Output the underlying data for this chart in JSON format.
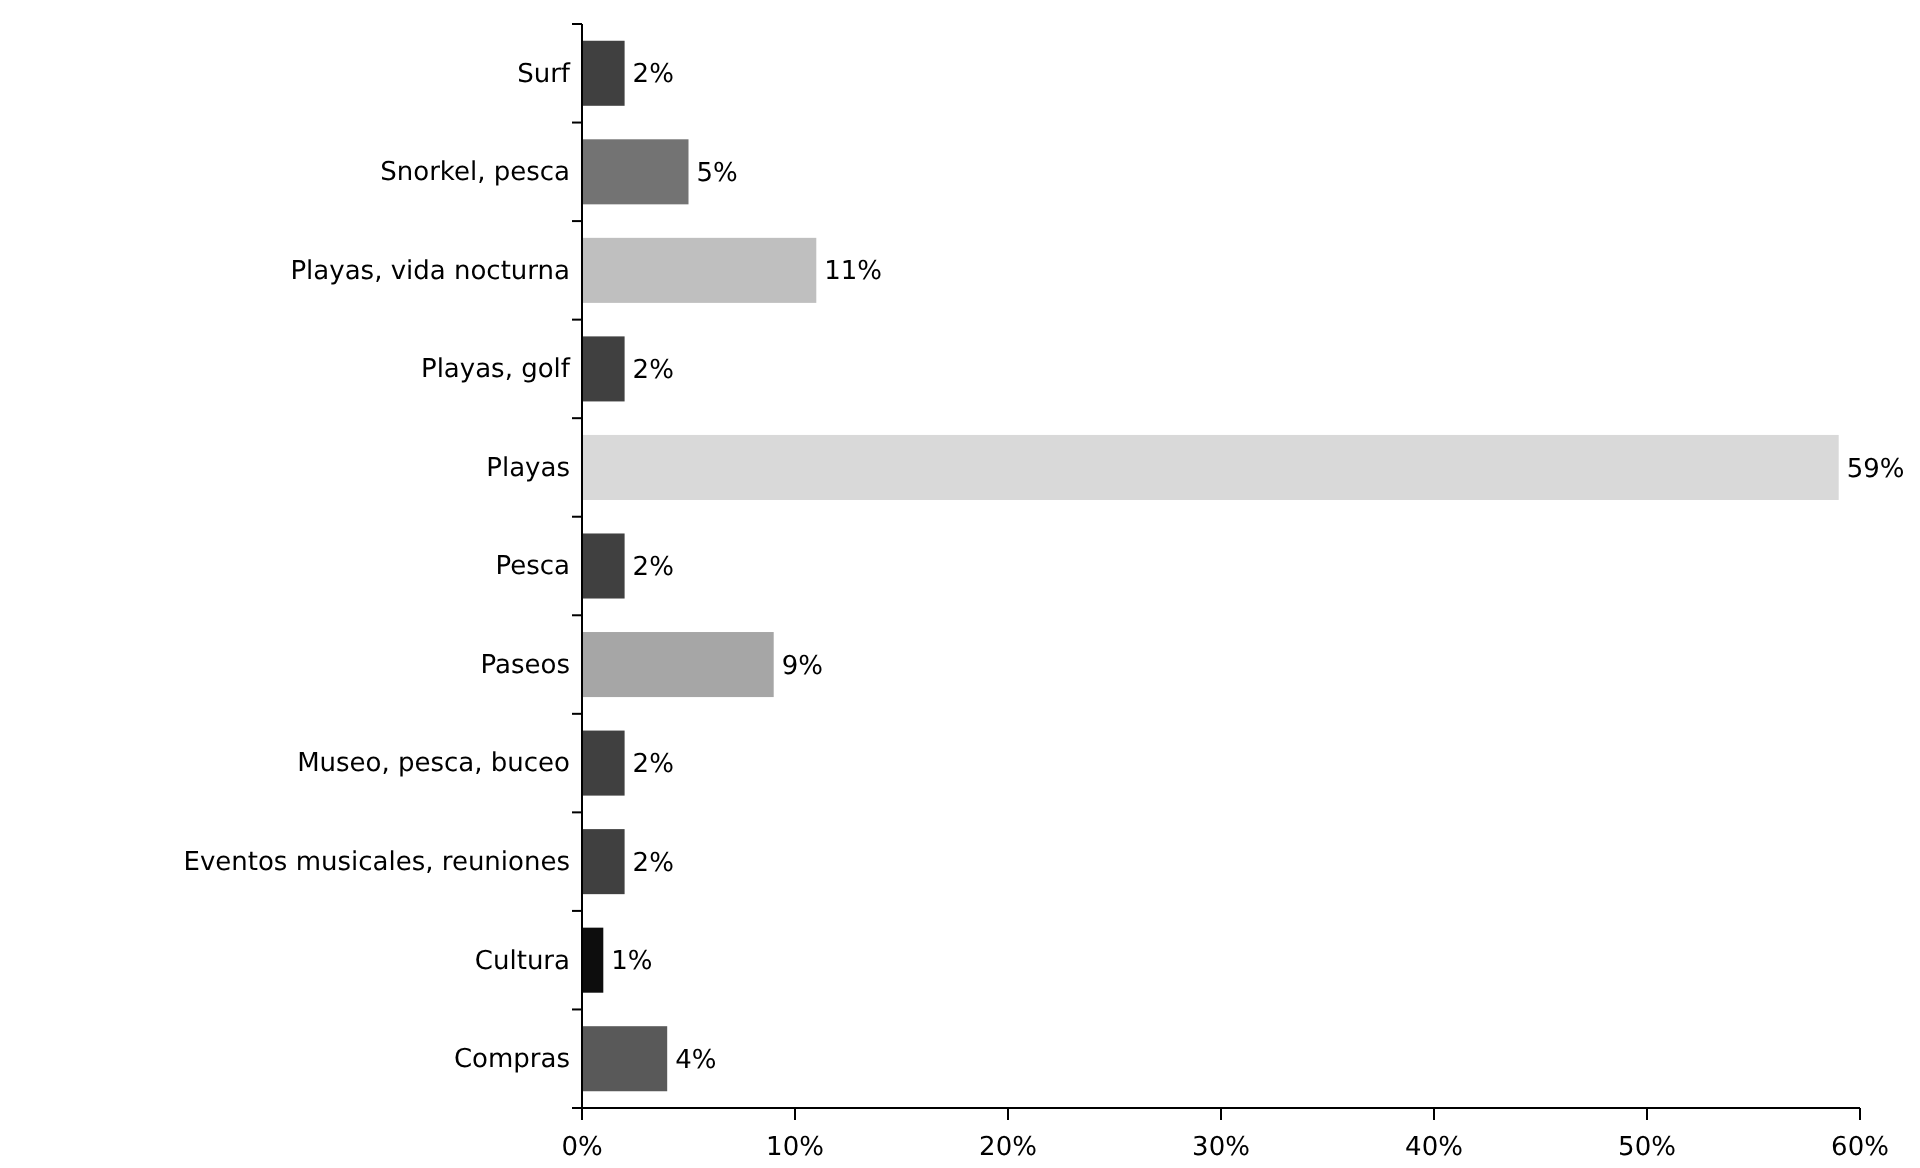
{
  "chart_data": {
    "type": "bar",
    "orientation": "horizontal",
    "categories": [
      "Surf",
      "Snorkel, pesca",
      "Playas, vida nocturna",
      "Playas, golf",
      "Playas",
      "Pesca",
      "Paseos",
      "Museo, pesca, buceo",
      "Eventos musicales, reuniones",
      "Cultura",
      "Compras"
    ],
    "values": [
      2,
      5,
      11,
      2,
      59,
      2,
      9,
      2,
      2,
      1,
      4
    ],
    "colors": [
      "#404040",
      "#737373",
      "#bfbfbf",
      "#404040",
      "#d9d9d9",
      "#404040",
      "#a6a6a6",
      "#404040",
      "#404040",
      "#0d0d0d",
      "#595959"
    ],
    "value_labels": [
      "2%",
      "5%",
      "11%",
      "2%",
      "59%",
      "2%",
      "9%",
      "2%",
      "2%",
      "1%",
      "4%"
    ],
    "xlim": [
      0,
      60
    ],
    "xticks": [
      {
        "value": 0,
        "label": "0%"
      },
      {
        "value": 10,
        "label": "10%"
      },
      {
        "value": 20,
        "label": "20%"
      },
      {
        "value": 30,
        "label": "30%"
      },
      {
        "value": 40,
        "label": "40%"
      },
      {
        "value": 50,
        "label": "50%"
      },
      {
        "value": 60,
        "label": "60%"
      }
    ],
    "grid": false
  }
}
